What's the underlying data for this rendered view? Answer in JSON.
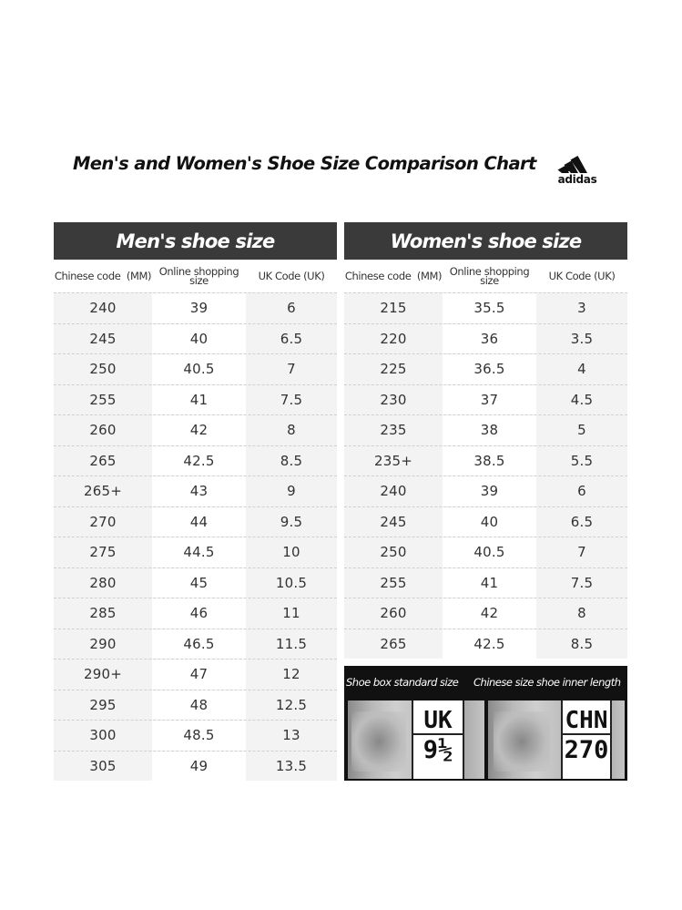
{
  "title": "Men's and Women's Shoe Size Comparison Chart",
  "brand": {
    "name": "adidas",
    "icon": "adidas-three-stripes-icon"
  },
  "men": {
    "header": "Men's shoe size",
    "columns": [
      "Chinese code  (MM)",
      "Online shopping size",
      "UK Code (UK)"
    ],
    "rows": [
      [
        "240",
        "39",
        "6"
      ],
      [
        "245",
        "40",
        "6.5"
      ],
      [
        "250",
        "40.5",
        "7"
      ],
      [
        "255",
        "41",
        "7.5"
      ],
      [
        "260",
        "42",
        "8"
      ],
      [
        "265",
        "42.5",
        "8.5"
      ],
      [
        "265+",
        "43",
        "9"
      ],
      [
        "270",
        "44",
        "9.5"
      ],
      [
        "275",
        "44.5",
        "10"
      ],
      [
        "280",
        "45",
        "10.5"
      ],
      [
        "285",
        "46",
        "11"
      ],
      [
        "290",
        "46.5",
        "11.5"
      ],
      [
        "290+",
        "47",
        "12"
      ],
      [
        "295",
        "48",
        "12.5"
      ],
      [
        "300",
        "48.5",
        "13"
      ],
      [
        "305",
        "49",
        "13.5"
      ]
    ]
  },
  "women": {
    "header": "Women's shoe size",
    "columns": [
      "Chinese code  (MM)",
      "Online shopping size",
      "UK Code (UK)"
    ],
    "rows": [
      [
        "215",
        "35.5",
        "3"
      ],
      [
        "220",
        "36",
        "3.5"
      ],
      [
        "225",
        "36.5",
        "4"
      ],
      [
        "230",
        "37",
        "4.5"
      ],
      [
        "235",
        "38",
        "5"
      ],
      [
        "235+",
        "38.5",
        "5.5"
      ],
      [
        "240",
        "39",
        "6"
      ],
      [
        "245",
        "40",
        "6.5"
      ],
      [
        "250",
        "40.5",
        "7"
      ],
      [
        "255",
        "41",
        "7.5"
      ],
      [
        "260",
        "42",
        "8"
      ],
      [
        "265",
        "42.5",
        "8.5"
      ]
    ]
  },
  "label_photo": {
    "caption_left": "Shoe box standard size",
    "caption_right": "Chinese size shoe inner length",
    "uk_label": "UK",
    "uk_value": "9½",
    "chn_label": "CHN",
    "chn_value": "270"
  }
}
